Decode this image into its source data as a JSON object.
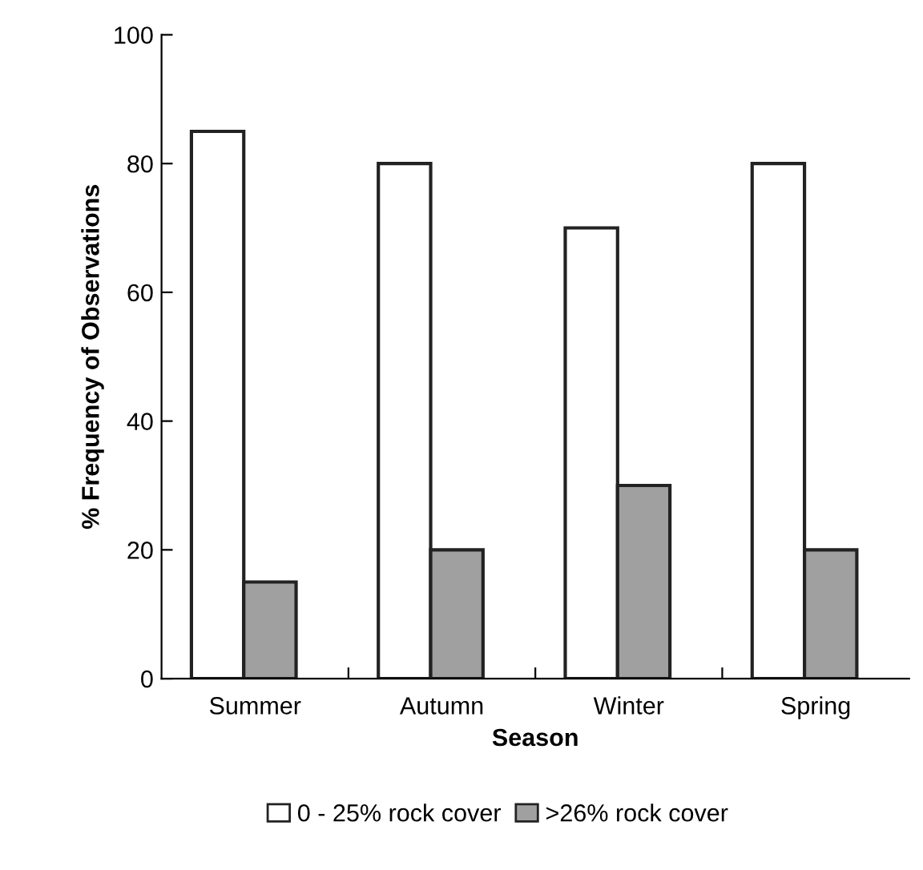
{
  "chart_data": {
    "type": "bar",
    "xlabel": "Season",
    "ylabel": "% Frequency of Observations",
    "categories": [
      "Summer",
      "Autumn",
      "Winter",
      "Spring"
    ],
    "series": [
      {
        "name": "0 - 25% rock cover",
        "color": "#ffffff",
        "values": [
          85,
          80,
          70,
          80
        ]
      },
      {
        "name": ">26% rock cover",
        "color": "#a0a0a0",
        "values": [
          15,
          20,
          30,
          20
        ]
      }
    ],
    "ylim": [
      0,
      100
    ],
    "yticks": [
      0,
      20,
      40,
      60,
      80,
      100
    ],
    "grid": false,
    "legend": "bottom"
  }
}
